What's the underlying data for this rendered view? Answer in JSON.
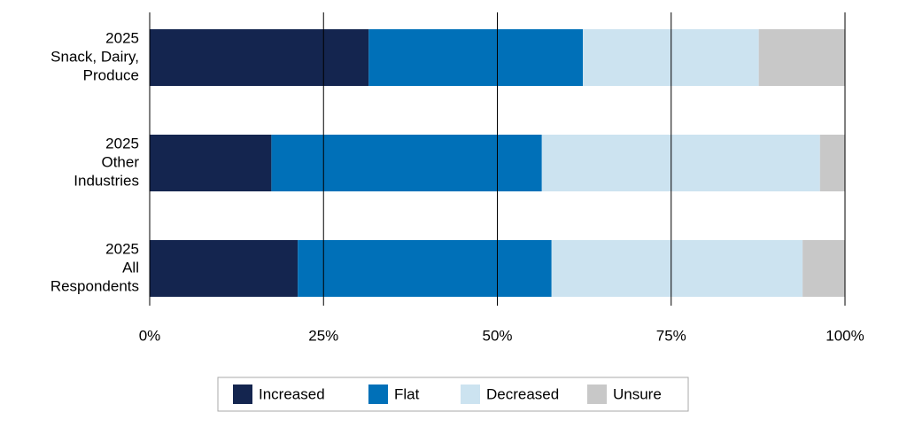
{
  "chart_data": {
    "type": "stacked-barh",
    "categories": [
      [
        "2025",
        "Snack, Dairy,",
        "Produce"
      ],
      [
        "2025",
        "Other",
        "Industries"
      ],
      [
        "2025",
        "All",
        "Respondents"
      ]
    ],
    "series": [
      {
        "name": "Increased",
        "color": "#14254f",
        "values": [
          31.5,
          17.5,
          21.3
        ]
      },
      {
        "name": "Flat",
        "color": "#0070b8",
        "values": [
          30.8,
          38.9,
          36.5
        ]
      },
      {
        "name": "Decreased",
        "color": "#cce3f0",
        "values": [
          25.3,
          40.0,
          36.1
        ]
      },
      {
        "name": "Unsure",
        "color": "#c8c8c8",
        "values": [
          12.4,
          3.6,
          6.1
        ]
      }
    ],
    "xlim": [
      0,
      100
    ],
    "xticks": [
      {
        "value": 0,
        "label": "0%"
      },
      {
        "value": 25,
        "label": "25%"
      },
      {
        "value": 50,
        "label": "50%"
      },
      {
        "value": 75,
        "label": "75%"
      },
      {
        "value": 100,
        "label": "100%"
      }
    ],
    "grid": true,
    "legend": "bottom"
  }
}
